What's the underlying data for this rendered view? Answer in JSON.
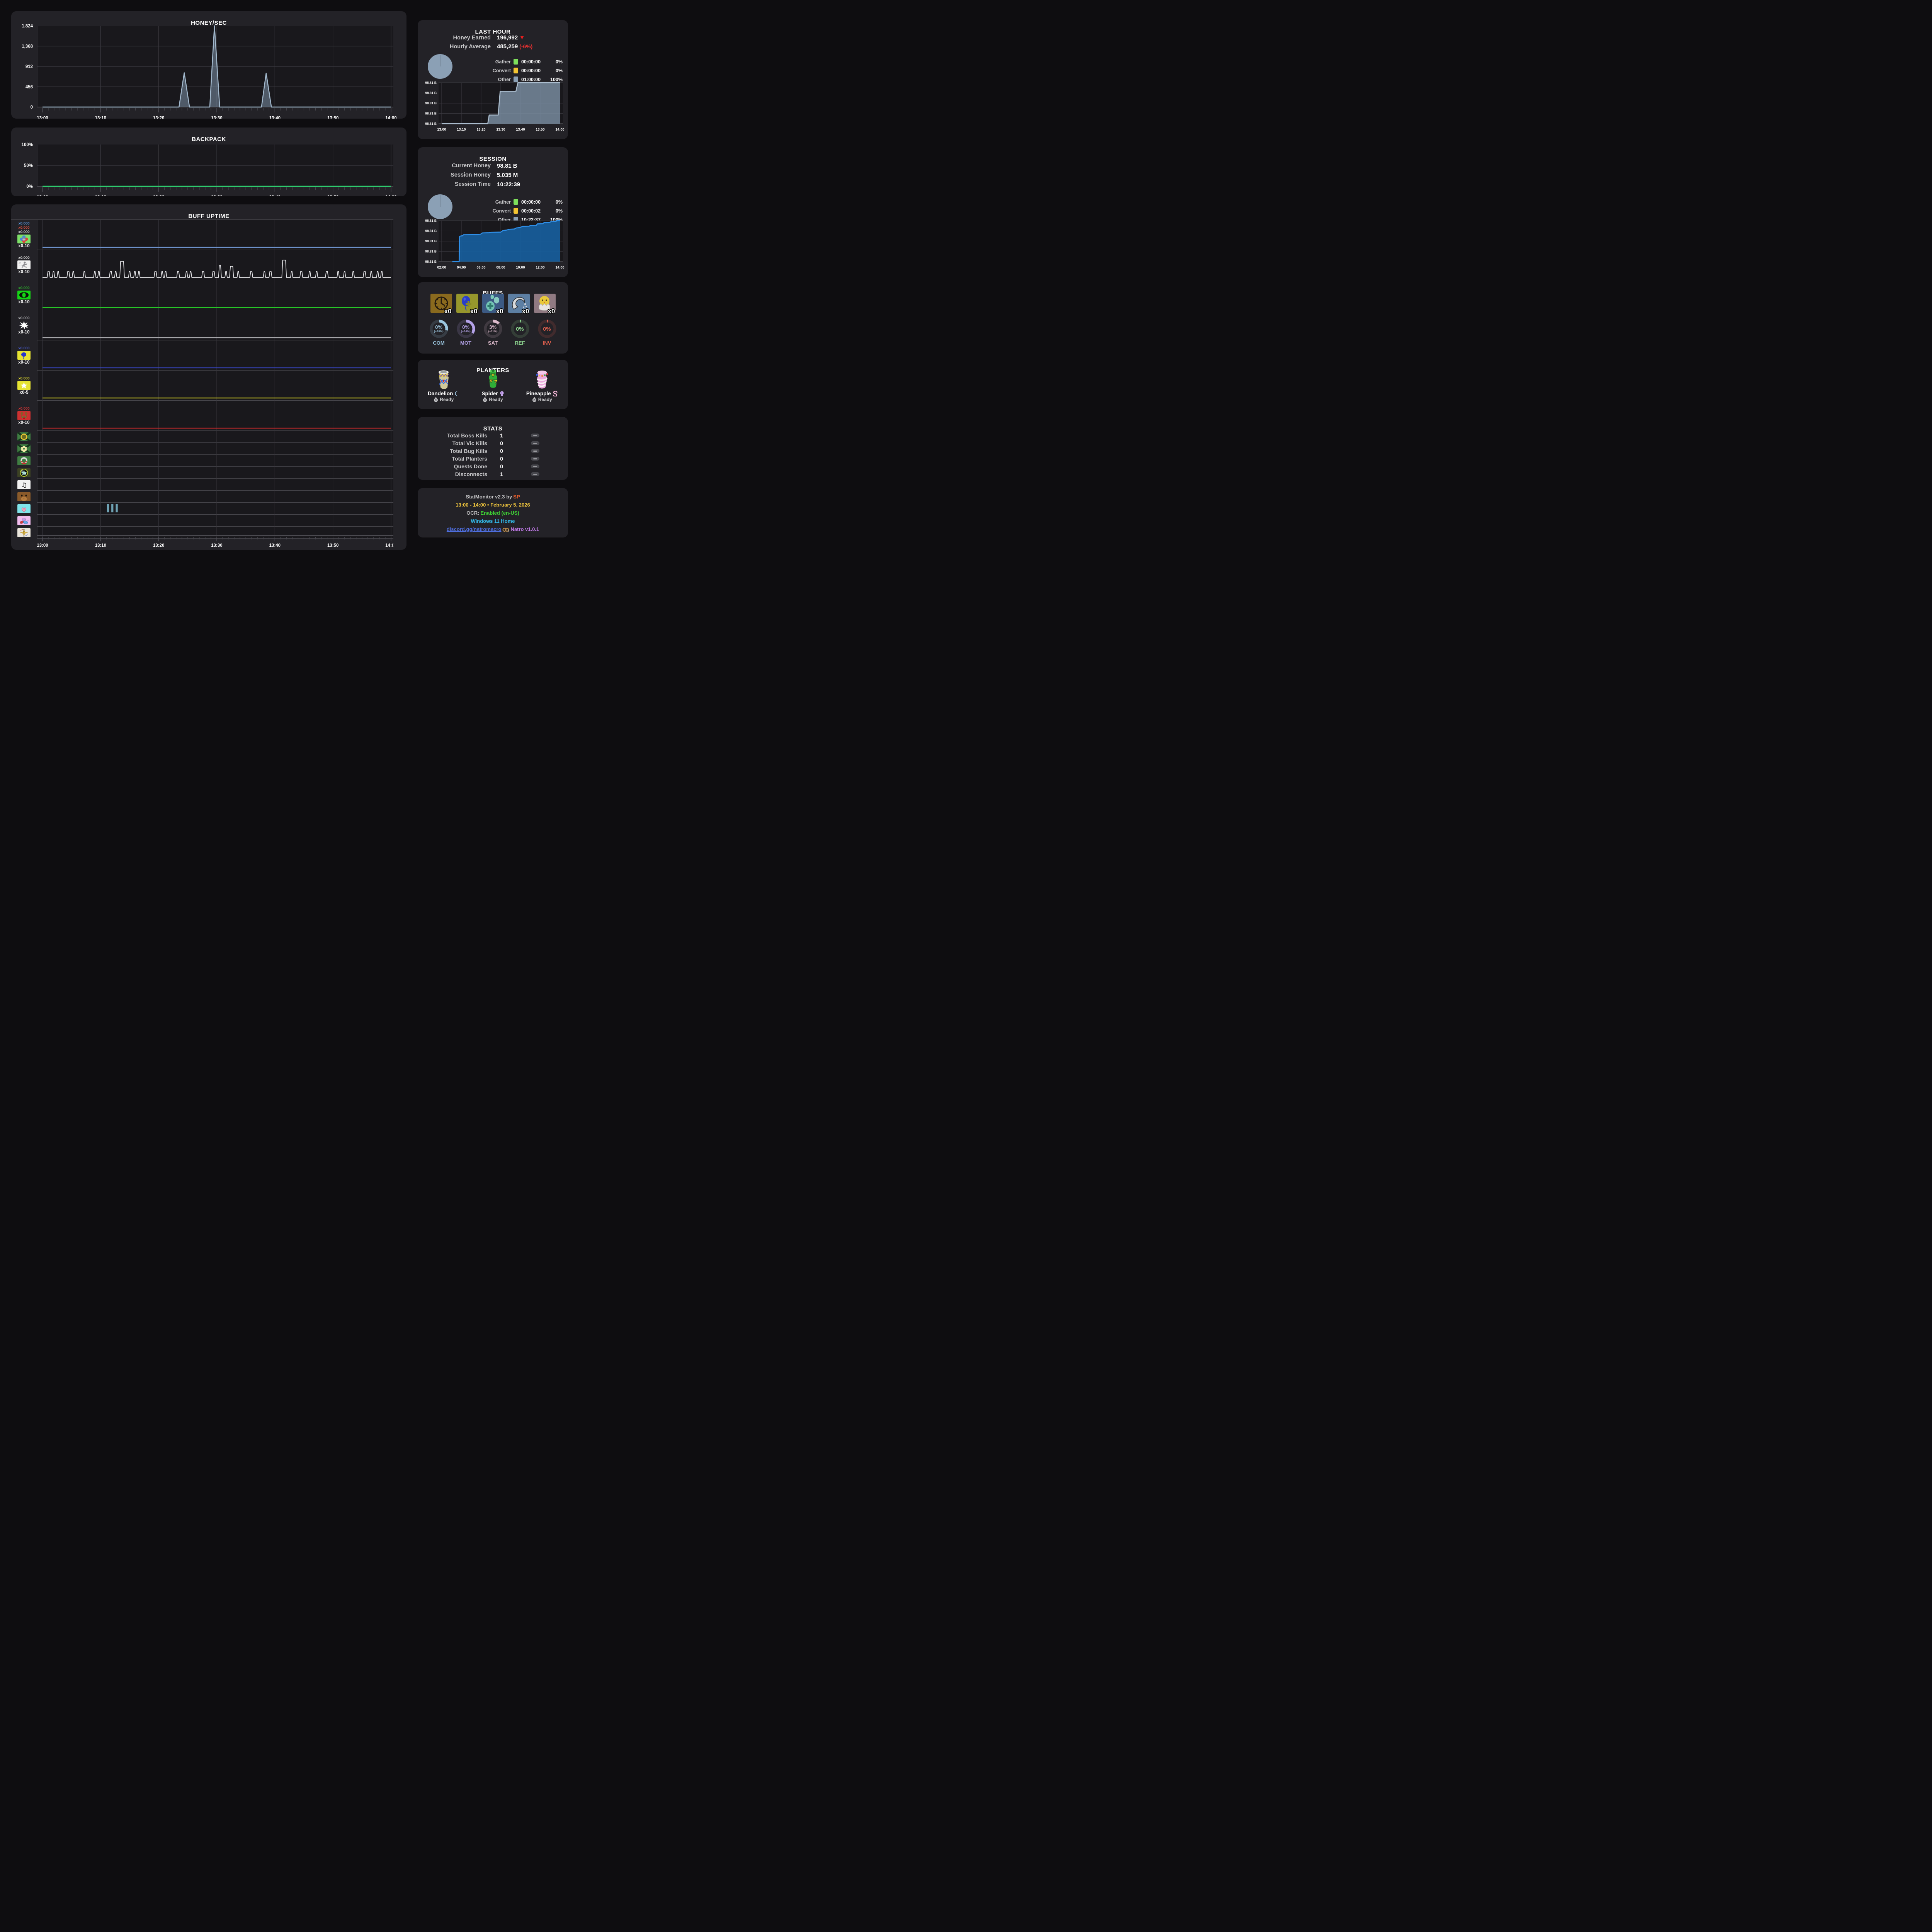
{
  "app": {
    "background": "#0e0d10",
    "panel": "#232227",
    "plot": "#19181c",
    "grid": "#3a393f",
    "grid_bright": "#4b4a50"
  },
  "charts": {
    "honey": {
      "type": "area",
      "title": "HONEY/SEC",
      "y_ticks": [
        "1,824",
        "1,368",
        "912",
        "456",
        "0"
      ],
      "y_max": 1824,
      "x_ticks": [
        "13:00",
        "13:10",
        "13:20",
        "13:30",
        "13:40",
        "13:50",
        "14:00"
      ],
      "line_color": "#a2b8cc",
      "fill_color": "rgba(124,146,167,0.55)",
      "points": [
        [
          0,
          0
        ],
        [
          23.5,
          0
        ],
        [
          24.4,
          770
        ],
        [
          25.3,
          0
        ],
        [
          28.8,
          0
        ],
        [
          29.6,
          1824
        ],
        [
          30.5,
          0
        ],
        [
          37.7,
          0
        ],
        [
          38.5,
          760
        ],
        [
          39.4,
          0
        ],
        [
          60,
          0
        ]
      ]
    },
    "backpack": {
      "type": "line",
      "title": "BACKPACK",
      "y_ticks": [
        "100%",
        "50%",
        "0%"
      ],
      "y_max": 100,
      "x_ticks": [
        "13:00",
        "13:10",
        "13:20",
        "13:30",
        "13:40",
        "13:50",
        "14:00"
      ],
      "line_color": "#2fe077",
      "points": [
        [
          0,
          0
        ],
        [
          60,
          0
        ]
      ]
    },
    "buff": {
      "type": "timeline-rows",
      "title": "BUFF UPTIME",
      "x_ticks": [
        "13:00",
        "13:10",
        "13:20",
        "13:30",
        "13:40",
        "13:50",
        "14:00"
      ],
      "rows": [
        {
          "icon": "flower-plus-icon",
          "tall": true,
          "multipliers": [
            {
              "text": "x0.000",
              "color": "#5f9fe8"
            },
            {
              "text": "x0.000",
              "color": "#e05240"
            },
            {
              "text": "x0.000",
              "color": "#ffffff"
            }
          ],
          "range": "x0-10",
          "line_color": "#6f94cf",
          "value": 0
        },
        {
          "icon": "runner-icon",
          "tall": true,
          "multipliers": [
            {
              "text": "x0.000",
              "color": "#ffffff"
            }
          ],
          "range": "x0-10",
          "line_color": "#e9e9ec",
          "value": 0,
          "pulses": [
            [
              0.8,
              0.5,
              1
            ],
            [
              1.7,
              0.4,
              1
            ],
            [
              2.5,
              0.4,
              1
            ],
            [
              4.2,
              0.5,
              1
            ],
            [
              5.1,
              0.4,
              1
            ],
            [
              7,
              0.4,
              1
            ],
            [
              8.8,
              0.4,
              1
            ],
            [
              9.5,
              0.4,
              1
            ],
            [
              11.5,
              0.5,
              1
            ],
            [
              12.4,
              0.4,
              1
            ],
            [
              13.3,
              0.8,
              2.6
            ],
            [
              14.8,
              0.4,
              1
            ],
            [
              15.7,
              0.4,
              1
            ],
            [
              16.4,
              0.4,
              1
            ],
            [
              19.2,
              0.5,
              1
            ],
            [
              20.4,
              0.4,
              1
            ],
            [
              21,
              0.4,
              1
            ],
            [
              23.1,
              0.5,
              1
            ],
            [
              24.6,
              0.4,
              1
            ],
            [
              25.3,
              0.4,
              1
            ],
            [
              27.4,
              0.5,
              1
            ],
            [
              29.2,
              0.5,
              1
            ],
            [
              30.3,
              0.5,
              2
            ],
            [
              31.4,
              0.4,
              1
            ],
            [
              32.2,
              0.7,
              1.8
            ],
            [
              33.5,
              0.4,
              1
            ],
            [
              35.7,
              0.5,
              1
            ],
            [
              38,
              0.4,
              1
            ],
            [
              39,
              0.5,
              1
            ],
            [
              41.2,
              0.8,
              2.8
            ],
            [
              42.7,
              0.4,
              1
            ],
            [
              44.3,
              0.5,
              1
            ],
            [
              45.8,
              0.4,
              1
            ],
            [
              47,
              0.4,
              1
            ],
            [
              48.7,
              0.5,
              1
            ],
            [
              50.7,
              0.4,
              1
            ],
            [
              51.8,
              0.4,
              1
            ],
            [
              53.3,
              0.4,
              1
            ],
            [
              55.2,
              0.5,
              1
            ],
            [
              56.4,
              0.4,
              1
            ],
            [
              57.5,
              0.4,
              1
            ],
            [
              58.2,
              0.4,
              1
            ]
          ]
        },
        {
          "icon": "eye-icon",
          "tall": true,
          "multipliers": [
            {
              "text": "x0.000",
              "color": "#2ecc2e"
            }
          ],
          "range": "x0-10",
          "line_color": "#27c427",
          "value": 0
        },
        {
          "icon": "starburst-icon",
          "tall": true,
          "multipliers": [
            {
              "text": "x0.000",
              "color": "#c9c9cd"
            }
          ],
          "range": "x0-10",
          "line_color": "#ababaf",
          "value": 0
        },
        {
          "icon": "balloon-icon",
          "tall": true,
          "multipliers": [
            {
              "text": "x0.000",
              "color": "#4b5fd8"
            }
          ],
          "range": "x0-10",
          "line_color": "#3a49cf",
          "value": 0
        },
        {
          "icon": "star-icon",
          "tall": true,
          "multipliers": [
            {
              "text": "x0.000",
              "color": "#e8e02c"
            }
          ],
          "range": "x0-5",
          "line_color": "#d8d026",
          "value": 0
        },
        {
          "icon": "antlers-icon",
          "tall": true,
          "multipliers": [
            {
              "text": "x0.000",
              "color": "#e03434"
            }
          ],
          "range": "x0-10",
          "line_color": "#d02a2a",
          "value": 0
        },
        {
          "icon": "hex-mark-icon"
        },
        {
          "icon": "flower-mark-icon"
        },
        {
          "icon": "wreath-icon"
        },
        {
          "icon": "star-badge-icon"
        },
        {
          "icon": "music-note-icon"
        },
        {
          "icon": "bear-icon"
        },
        {
          "icon": "heart-icon",
          "bars": [
            [
              11.1,
              0.35
            ],
            [
              11.85,
              0.35
            ],
            [
              12.6,
              0.35
            ]
          ],
          "bar_color": "#6fa3b5"
        },
        {
          "icon": "jellybeans-icon"
        },
        {
          "icon": "compass-icon"
        }
      ]
    },
    "last_hour_mini": {
      "type": "step-area",
      "y_ticks": [
        "98.81 B",
        "98.81 B",
        "98.81 B",
        "98.81 B",
        "98.81 B"
      ],
      "x_ticks": [
        "13:00",
        "13:10",
        "13:20",
        "13:30",
        "13:40",
        "13:50",
        "14:00"
      ],
      "line_color": "#aabccd",
      "fill_color": "rgba(125,146,166,0.8)",
      "points": [
        [
          0,
          0
        ],
        [
          0.39,
          0
        ],
        [
          0.402,
          0.21
        ],
        [
          0.478,
          0.21
        ],
        [
          0.495,
          0.79
        ],
        [
          0.628,
          0.79
        ],
        [
          0.645,
          1
        ],
        [
          1,
          1
        ]
      ]
    },
    "session_mini": {
      "type": "area",
      "y_ticks": [
        "98.81 B",
        "98.81 B",
        "98.81 B",
        "98.81 B",
        "98.81 B"
      ],
      "x_ticks": [
        "02:00",
        "04:00",
        "06:00",
        "08:00",
        "10:00",
        "12:00",
        "14:00"
      ],
      "line_color": "#2f8fe8",
      "fill_color": "rgba(23,94,156,0.92)",
      "points": [
        [
          0.09,
          0
        ],
        [
          0.148,
          0
        ],
        [
          0.152,
          0.62
        ],
        [
          0.175,
          0.63
        ],
        [
          0.185,
          0.655
        ],
        [
          0.25,
          0.658
        ],
        [
          0.3,
          0.66
        ],
        [
          0.33,
          0.67
        ],
        [
          0.345,
          0.7
        ],
        [
          0.4,
          0.705
        ],
        [
          0.42,
          0.715
        ],
        [
          0.5,
          0.72
        ],
        [
          0.52,
          0.76
        ],
        [
          0.55,
          0.77
        ],
        [
          0.575,
          0.79
        ],
        [
          0.615,
          0.795
        ],
        [
          0.63,
          0.82
        ],
        [
          0.66,
          0.83
        ],
        [
          0.685,
          0.86
        ],
        [
          0.74,
          0.865
        ],
        [
          0.75,
          0.88
        ],
        [
          0.8,
          0.885
        ],
        [
          0.81,
          0.92
        ],
        [
          0.855,
          0.925
        ],
        [
          0.865,
          0.95
        ],
        [
          0.91,
          0.955
        ],
        [
          0.925,
          0.975
        ],
        [
          0.965,
          0.98
        ],
        [
          0.975,
          1
        ],
        [
          1,
          1
        ]
      ]
    }
  },
  "last_hour": {
    "title": "LAST HOUR",
    "rows": [
      {
        "label": "Honey Earned",
        "value": "196,992",
        "suffix": "▼",
        "suffix_color": "#e81f1f"
      },
      {
        "label": "Hourly Average",
        "value": "485,259",
        "suffix": "(-6%)",
        "suffix_color": "#e83030"
      }
    ],
    "legend": [
      {
        "label": "Gather",
        "color": "#7ee05b",
        "time": "00:00:00",
        "pct": "0%"
      },
      {
        "label": "Convert",
        "color": "#f2c432",
        "time": "00:00:00",
        "pct": "0%"
      },
      {
        "label": "Other",
        "color": "#8ba0b5",
        "time": "01:00:00",
        "pct": "100%"
      }
    ],
    "pie_color": "#8ba0b5"
  },
  "session": {
    "title": "SESSION",
    "rows": [
      {
        "label": "Current Honey",
        "value": "98.81 B"
      },
      {
        "label": "Session Honey",
        "value": "5.035 M"
      },
      {
        "label": "Session Time",
        "value": "10:22:39"
      }
    ],
    "legend": [
      {
        "label": "Gather",
        "color": "#7ee05b",
        "time": "00:00:00",
        "pct": "0%"
      },
      {
        "label": "Convert",
        "color": "#f2c432",
        "time": "00:00:02",
        "pct": "0%"
      },
      {
        "label": "Other",
        "color": "#8ba0b5",
        "time": "10:22:37",
        "pct": "100%"
      }
    ],
    "pie_color": "#8ba0b5"
  },
  "buffs": {
    "title": "BUFFS",
    "tiles": [
      {
        "icon": "clock-buff-icon",
        "count": "x0"
      },
      {
        "icon": "balloon-buff-icon",
        "count": "x0"
      },
      {
        "icon": "eggs-buff-icon",
        "count": "x0"
      },
      {
        "icon": "wave-buff-icon",
        "count": "x0"
      },
      {
        "icon": "chick-buff-icon",
        "count": "x0"
      }
    ],
    "gauges": [
      {
        "label": "COM",
        "pct": "0%",
        "sub": "(+28%)",
        "arc": 28,
        "color": "#9cc7e0"
      },
      {
        "label": "MOT",
        "pct": "0%",
        "sub": "(+34%)",
        "arc": 34,
        "color": "#b4a2e8"
      },
      {
        "label": "SAT",
        "pct": "3%",
        "sub": "(+11%)",
        "arc": 13,
        "color": "#dcbacb"
      },
      {
        "label": "REF",
        "pct": "0%",
        "sub": "",
        "arc": 1.5,
        "color": "#8ed690"
      },
      {
        "label": "INV",
        "pct": "0%",
        "sub": "",
        "arc": 1.5,
        "color": "#e0604e"
      }
    ]
  },
  "planters": {
    "title": "PLANTERS",
    "items": [
      {
        "name": "Dandelion",
        "badge": "moon-icon",
        "status": "Ready",
        "planter": "dandelion-planter"
      },
      {
        "name": "Spider",
        "badge": "bulb-icon",
        "status": "Ready",
        "planter": "spider-planter"
      },
      {
        "name": "Pineapple",
        "badge": "swirl-icon",
        "status": "Ready",
        "planter": "pineapple-planter"
      }
    ]
  },
  "stats": {
    "title": "STATS",
    "rows": [
      [
        "Total Boss Kills",
        "1"
      ],
      [
        "Total Vic Kills",
        "0"
      ],
      [
        "Total Bug Kills",
        "0"
      ],
      [
        "Total Planters",
        "0"
      ],
      [
        "Quests Done",
        "0"
      ],
      [
        "Disconnects",
        "1"
      ]
    ]
  },
  "footer": {
    "lines": [
      [
        {
          "text": "StatMonitor v2.3 by ",
          "color": "#cbcbcd"
        },
        {
          "text": "SP",
          "color": "#f2622e"
        }
      ],
      [
        {
          "text": "13:00 - 14:00 • February 5, 2026",
          "color": "#f4c93e"
        }
      ],
      [
        {
          "text": "OCR: ",
          "color": "#c3c3c5"
        },
        {
          "text": "Enabled (en-US)",
          "color": "#3fd435"
        }
      ],
      [
        {
          "text": "Windows 11 Home",
          "color": "#33bff0"
        }
      ],
      [
        {
          "text": "discord.gg/natromacro",
          "color": "#4f6fe0",
          "link": true
        },
        {
          "icon": "natro-logo-icon"
        },
        {
          "text": " Natro v1.0.1",
          "color": "#c07ae8"
        }
      ]
    ]
  }
}
